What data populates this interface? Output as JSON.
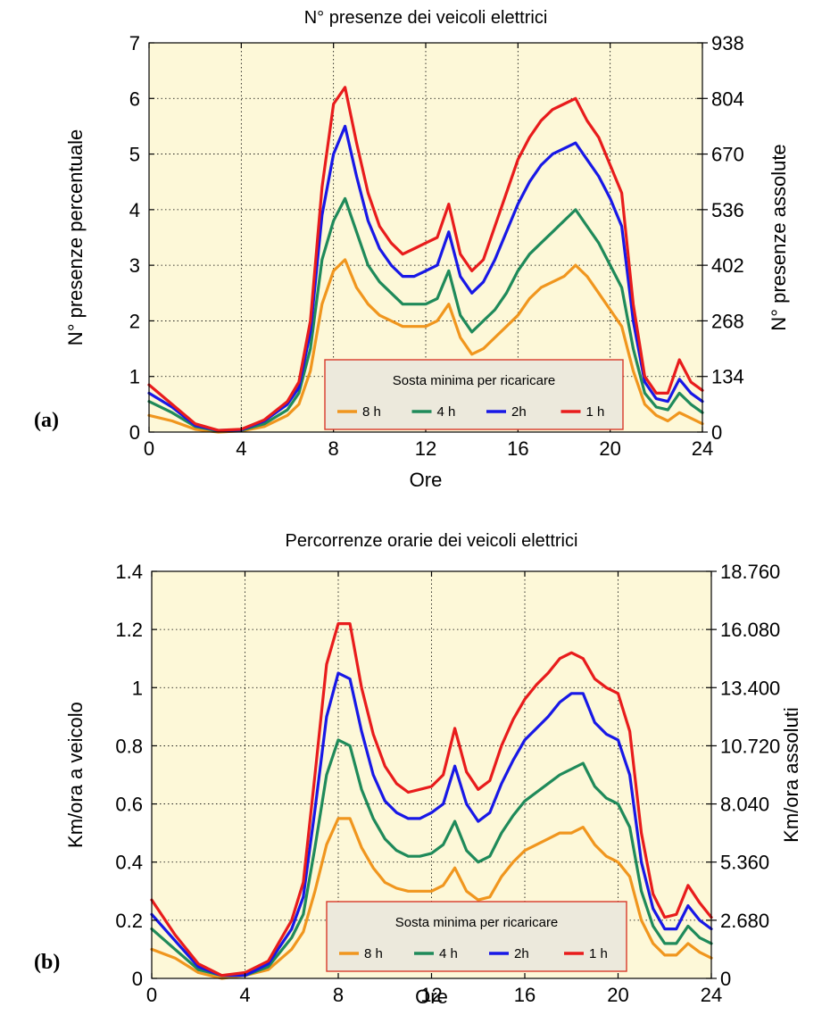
{
  "chart_data": [
    {
      "type": "line",
      "panel_label": "(a)",
      "title": "N° presenze dei veicoli elettrici",
      "xlabel": "Ore",
      "ylabel": "N° presenze  percentuale",
      "ylabel_right": "N° presenze  assolute",
      "xlim": [
        0,
        24
      ],
      "ylim": [
        0,
        7
      ],
      "xticks": [
        "0",
        "4",
        "8",
        "12",
        "16",
        "20",
        "24"
      ],
      "yticks": [
        "0",
        "1",
        "2",
        "3",
        "4",
        "5",
        "6",
        "7"
      ],
      "yticks_right": [
        "0",
        "134",
        "268",
        "402",
        "536",
        "670",
        "804",
        "938"
      ],
      "grid": true,
      "legend": {
        "title": "Sosta minima per ricaricare",
        "placement": "bottom-center",
        "items": [
          "8 h",
          "4 h",
          "2h",
          "1 h"
        ]
      },
      "x": [
        0,
        1,
        2,
        3,
        4,
        5,
        6,
        6.5,
        7,
        7.5,
        8,
        8.5,
        9,
        9.5,
        10,
        10.5,
        11,
        11.5,
        12,
        12.5,
        13,
        13.5,
        14,
        14.5,
        15,
        15.5,
        16,
        16.5,
        17,
        17.5,
        18,
        18.5,
        19,
        19.5,
        20,
        20.5,
        21,
        21.5,
        22,
        22.5,
        23,
        23.5,
        24
      ],
      "series": [
        {
          "name": "8 h",
          "color": "#f0961e",
          "values": [
            0.3,
            0.2,
            0.05,
            0.0,
            0.02,
            0.1,
            0.3,
            0.5,
            1.1,
            2.3,
            2.9,
            3.1,
            2.6,
            2.3,
            2.1,
            2.0,
            1.9,
            1.9,
            1.9,
            2.0,
            2.3,
            1.7,
            1.4,
            1.5,
            1.7,
            1.9,
            2.1,
            2.4,
            2.6,
            2.7,
            2.8,
            3.0,
            2.8,
            2.5,
            2.2,
            1.9,
            1.1,
            0.5,
            0.3,
            0.2,
            0.35,
            0.25,
            0.15
          ]
        },
        {
          "name": "4 h",
          "color": "#1f8a5a",
          "values": [
            0.55,
            0.35,
            0.1,
            0.02,
            0.03,
            0.15,
            0.4,
            0.7,
            1.5,
            3.1,
            3.8,
            4.2,
            3.6,
            3.0,
            2.7,
            2.5,
            2.3,
            2.3,
            2.3,
            2.4,
            2.9,
            2.1,
            1.8,
            2.0,
            2.2,
            2.5,
            2.9,
            3.2,
            3.4,
            3.6,
            3.8,
            4.0,
            3.7,
            3.4,
            3.0,
            2.6,
            1.5,
            0.7,
            0.45,
            0.4,
            0.7,
            0.5,
            0.35
          ]
        },
        {
          "name": "2h",
          "color": "#1818e6",
          "values": [
            0.7,
            0.45,
            0.12,
            0.03,
            0.04,
            0.2,
            0.5,
            0.8,
            1.8,
            3.9,
            5.0,
            5.5,
            4.6,
            3.8,
            3.3,
            3.0,
            2.8,
            2.8,
            2.9,
            3.0,
            3.6,
            2.8,
            2.5,
            2.7,
            3.1,
            3.6,
            4.1,
            4.5,
            4.8,
            5.0,
            5.1,
            5.2,
            4.9,
            4.6,
            4.2,
            3.7,
            2.0,
            0.9,
            0.6,
            0.55,
            0.95,
            0.7,
            0.55
          ]
        },
        {
          "name": "1 h",
          "color": "#e81c1c",
          "values": [
            0.85,
            0.5,
            0.15,
            0.03,
            0.05,
            0.22,
            0.55,
            0.9,
            2.0,
            4.4,
            5.9,
            6.2,
            5.2,
            4.3,
            3.7,
            3.4,
            3.2,
            3.3,
            3.4,
            3.5,
            4.1,
            3.2,
            2.9,
            3.1,
            3.7,
            4.3,
            4.9,
            5.3,
            5.6,
            5.8,
            5.9,
            6.0,
            5.6,
            5.3,
            4.8,
            4.3,
            2.3,
            1.0,
            0.7,
            0.7,
            1.3,
            0.9,
            0.75
          ]
        }
      ]
    },
    {
      "type": "line",
      "panel_label": "(b)",
      "title": "Percorrenze orarie dei veicoli elettrici",
      "xlabel": "Ore",
      "ylabel": "Km/ora  a veicolo",
      "ylabel_right": "Km/ora  assoluti",
      "xlim": [
        0,
        24
      ],
      "ylim": [
        0,
        1.4
      ],
      "xticks": [
        "0",
        "4",
        "8",
        "12",
        "16",
        "20",
        "24"
      ],
      "yticks": [
        "0",
        "0.2",
        "0.4",
        "0.6",
        "0.8",
        "1",
        "1.2",
        "1.4"
      ],
      "yticks_right": [
        "0",
        "2.680",
        "5.360",
        "8.040",
        "10.720",
        "13.400",
        "16.080",
        "18.760"
      ],
      "grid": true,
      "legend": {
        "title": "Sosta minima per ricaricare",
        "placement": "bottom-center",
        "items": [
          "8 h",
          "4 h",
          "2h",
          "1 h"
        ]
      },
      "x": [
        0,
        1,
        2,
        3,
        4,
        5,
        6,
        6.5,
        7,
        7.5,
        8,
        8.5,
        9,
        9.5,
        10,
        10.5,
        11,
        11.5,
        12,
        12.5,
        13,
        13.5,
        14,
        14.5,
        15,
        15.5,
        16,
        16.5,
        17,
        17.5,
        18,
        18.5,
        19,
        19.5,
        20,
        20.5,
        21,
        21.5,
        22,
        22.5,
        23,
        23.5,
        24
      ],
      "series": [
        {
          "name": "8 h",
          "color": "#f0961e",
          "values": [
            0.1,
            0.07,
            0.02,
            0.0,
            0.01,
            0.03,
            0.1,
            0.16,
            0.3,
            0.46,
            0.55,
            0.55,
            0.45,
            0.38,
            0.33,
            0.31,
            0.3,
            0.3,
            0.3,
            0.32,
            0.38,
            0.3,
            0.27,
            0.28,
            0.35,
            0.4,
            0.44,
            0.46,
            0.48,
            0.5,
            0.5,
            0.52,
            0.46,
            0.42,
            0.4,
            0.35,
            0.2,
            0.12,
            0.08,
            0.08,
            0.12,
            0.09,
            0.07
          ]
        },
        {
          "name": "4 h",
          "color": "#1f8a5a",
          "values": [
            0.17,
            0.1,
            0.03,
            0.01,
            0.01,
            0.04,
            0.14,
            0.22,
            0.45,
            0.7,
            0.82,
            0.8,
            0.65,
            0.55,
            0.48,
            0.44,
            0.42,
            0.42,
            0.43,
            0.46,
            0.54,
            0.44,
            0.4,
            0.42,
            0.5,
            0.56,
            0.61,
            0.64,
            0.67,
            0.7,
            0.72,
            0.74,
            0.66,
            0.62,
            0.6,
            0.52,
            0.3,
            0.18,
            0.12,
            0.12,
            0.18,
            0.14,
            0.12
          ]
        },
        {
          "name": "2h",
          "color": "#1818e6",
          "values": [
            0.22,
            0.13,
            0.04,
            0.01,
            0.01,
            0.05,
            0.17,
            0.28,
            0.58,
            0.9,
            1.05,
            1.03,
            0.85,
            0.7,
            0.61,
            0.57,
            0.55,
            0.55,
            0.57,
            0.6,
            0.73,
            0.6,
            0.54,
            0.57,
            0.67,
            0.75,
            0.82,
            0.86,
            0.9,
            0.95,
            0.98,
            0.98,
            0.88,
            0.84,
            0.82,
            0.7,
            0.4,
            0.24,
            0.17,
            0.17,
            0.25,
            0.2,
            0.17
          ]
        },
        {
          "name": "1 h",
          "color": "#e81c1c",
          "values": [
            0.27,
            0.15,
            0.05,
            0.01,
            0.02,
            0.06,
            0.2,
            0.33,
            0.7,
            1.08,
            1.22,
            1.22,
            1.0,
            0.84,
            0.73,
            0.67,
            0.64,
            0.65,
            0.66,
            0.7,
            0.86,
            0.71,
            0.65,
            0.68,
            0.8,
            0.89,
            0.96,
            1.01,
            1.05,
            1.1,
            1.12,
            1.1,
            1.03,
            1.0,
            0.98,
            0.85,
            0.5,
            0.29,
            0.21,
            0.22,
            0.32,
            0.26,
            0.21
          ]
        }
      ]
    }
  ]
}
